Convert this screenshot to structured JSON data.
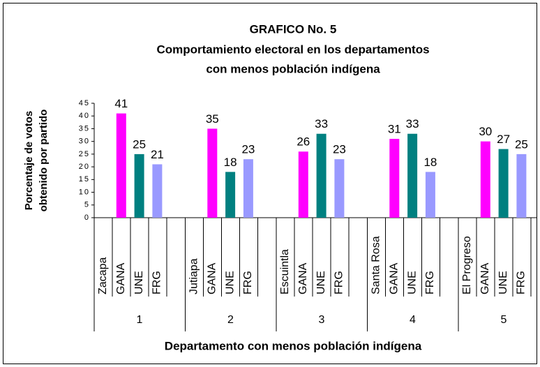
{
  "chart_data": {
    "type": "bar",
    "title": "GRAFICO No. 5",
    "subtitle": [
      "Comportamiento electoral en los departamentos",
      "con menos población indígena"
    ],
    "y_label": [
      "Porcentaje de votos",
      "obtenido por partido"
    ],
    "x_label": "Departamento con menos población indígena",
    "groups": [
      "1",
      "2",
      "3",
      "4",
      "5"
    ],
    "categories": [
      "Zacapa",
      "GANA",
      "UNE",
      "FRG",
      "Jutiapa",
      "GANA",
      "UNE",
      "FRG",
      "Escuintla",
      "GANA",
      "UNE",
      "FRG",
      "Santa Rosa",
      "GANA",
      "UNE",
      "FRG",
      "El Progreso",
      "GANA",
      "UNE",
      "FRG"
    ],
    "values": [
      null,
      41,
      25,
      21,
      null,
      35,
      18,
      23,
      null,
      26,
      33,
      23,
      null,
      31,
      33,
      18,
      null,
      30,
      27,
      25
    ],
    "bar_colors": {
      "GANA": "#ff00ff",
      "UNE": "#008080",
      "FRG": "#9999ff"
    },
    "ylim": [
      0,
      45
    ],
    "yticks": [
      0,
      5,
      10,
      15,
      20,
      25,
      30,
      35,
      40,
      45
    ]
  }
}
